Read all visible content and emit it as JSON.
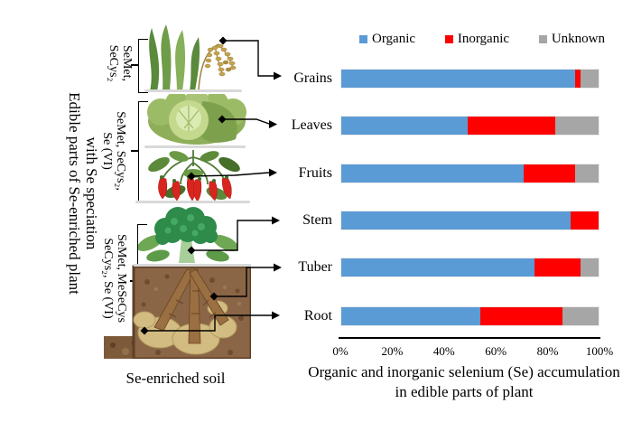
{
  "left_panel": {
    "rotated_title": {
      "line1": "Edible parts of Se-enriched plant",
      "line2": "with Se speciation"
    },
    "speciation_labels": [
      {
        "line1": "SeMet,",
        "line2": "SeCys₂"
      },
      {
        "line1": "SeMet, SeCys₂,",
        "line2": "Se (VI)"
      },
      {
        "line1": "SeMet, MeSeCys",
        "line2": "SeCys₂, Se (VI)"
      }
    ],
    "soil_caption": "Se-enriched soil",
    "plant_icons": [
      "rice-plant",
      "cabbage",
      "chili-pepper-plant",
      "broccoli",
      "soil-with-potatoes"
    ]
  },
  "chart_data": {
    "type": "bar",
    "orientation": "horizontal",
    "stacked": true,
    "categories": [
      "Grains",
      "Leaves",
      "Fruits",
      "Stem",
      "Tuber",
      "Root"
    ],
    "series": [
      {
        "name": "Organic",
        "color": "#5B9BD5",
        "values": [
          91,
          49,
          71,
          89,
          75,
          54
        ]
      },
      {
        "name": "Inorganic",
        "color": "#FF0000",
        "values": [
          2,
          34,
          20,
          11,
          18,
          32
        ]
      },
      {
        "name": "Unknown",
        "color": "#A6A6A6",
        "values": [
          7,
          17,
          9,
          0,
          7,
          14
        ]
      }
    ],
    "x_ticks": [
      "0%",
      "20%",
      "40%",
      "60%",
      "80%",
      "100%"
    ],
    "xlim": [
      0,
      100
    ],
    "grid": false,
    "legend_position": "top",
    "title_line1": "Organic and inorganic selenium (Se) accumulation",
    "title_line2": "in edible parts of plant",
    "title": "Organic and inorganic selenium (Se) accumulation in edible parts of plant"
  }
}
